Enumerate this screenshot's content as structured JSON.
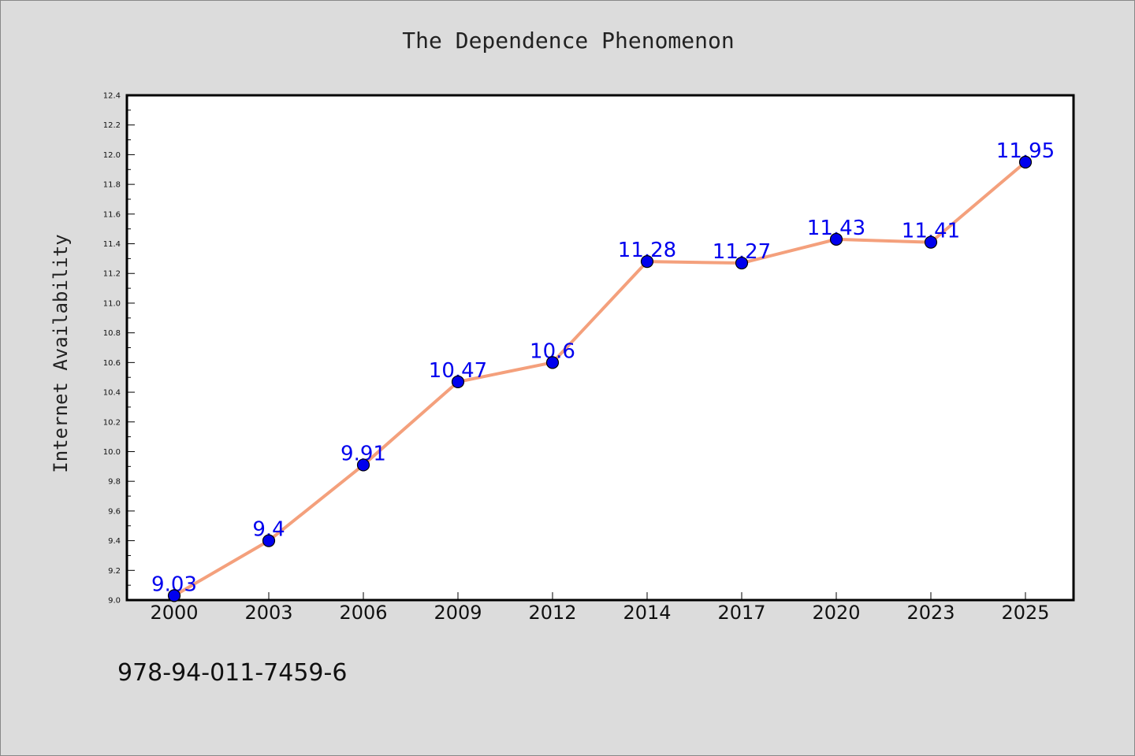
{
  "chart_data": {
    "type": "line",
    "title": "The Dependence Phenomenon",
    "xlabel": "",
    "ylabel": "Internet Availability",
    "categories": [
      "2000",
      "2003",
      "2006",
      "2009",
      "2012",
      "2014",
      "2017",
      "2020",
      "2023",
      "2025"
    ],
    "series": [
      {
        "values": [
          9.03,
          9.4,
          9.91,
          10.47,
          10.6,
          11.28,
          11.27,
          11.43,
          11.41,
          11.95
        ],
        "labels": [
          "9.03",
          "9.4",
          "9.91",
          "10.47",
          "10.6",
          "11.28",
          "11.27",
          "11.43",
          "11.41",
          "11.95"
        ],
        "line_color": "#f4a07c",
        "marker_color": "#0000ee"
      }
    ],
    "ylim": [
      9.0,
      12.4
    ],
    "yticks": [
      "9.0",
      "9.2",
      "9.4",
      "9.6",
      "9.8",
      "10.0",
      "10.2",
      "10.4",
      "10.6",
      "10.8",
      "11.0",
      "11.2",
      "11.4",
      "11.6",
      "11.8",
      "12.0",
      "12.2",
      "12.4"
    ],
    "grid": false,
    "legend": "none"
  },
  "footer_text": "978-94-011-7459-6"
}
